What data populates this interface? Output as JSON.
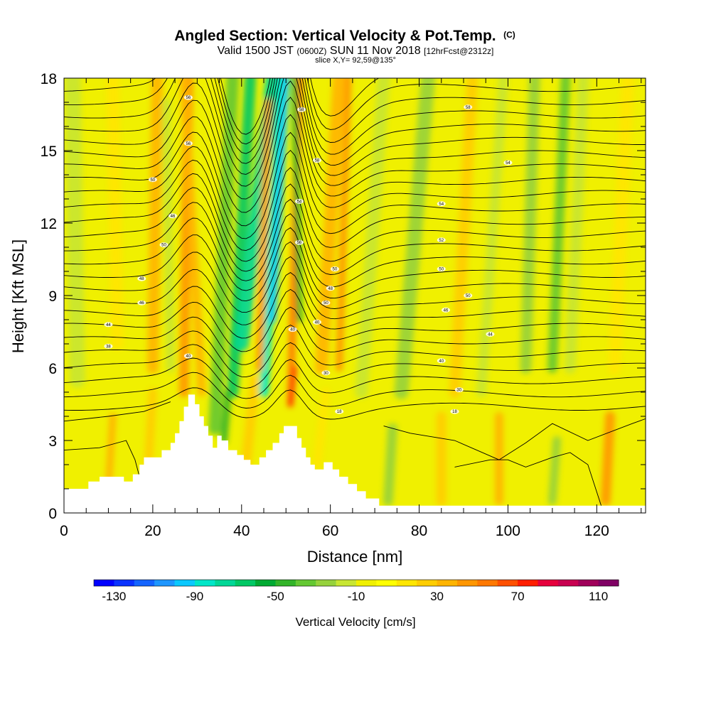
{
  "chart_data": {
    "type": "heatmap",
    "title": "Angled Section: Vertical Velocity & Pot.Temp.",
    "title_unit": "(C)",
    "subtitle": {
      "prefix": "Valid 1500 JST",
      "utc": "(0600Z)",
      "date": "SUN 11 Nov 2018",
      "forecast": "[12hrFcst@2312z]"
    },
    "slice": "slice X,Y= 92,59@135°",
    "xlabel": "Distance [nm]",
    "ylabel": "Height [Kft MSL]",
    "xlim": [
      0,
      131
    ],
    "ylim": [
      0,
      18
    ],
    "x_ticks": [
      0,
      20,
      40,
      60,
      80,
      100,
      120
    ],
    "y_ticks": [
      0,
      3,
      6,
      9,
      12,
      15,
      18
    ],
    "colorbar": {
      "title": "Vertical Velocity [cm/s]",
      "tick_labels": [
        "-130",
        "-90",
        "-50",
        "-10",
        "30",
        "70",
        "110"
      ],
      "tick_values": [
        -130,
        -90,
        -50,
        -10,
        30,
        70,
        110
      ],
      "range": [
        -140,
        120
      ],
      "colors": [
        "#0000ff",
        "#0a32ff",
        "#1464ff",
        "#1e96ff",
        "#0ac8ff",
        "#00e6c8",
        "#00d796",
        "#00c864",
        "#00aa32",
        "#32b428",
        "#64c832",
        "#96d23c",
        "#c8e632",
        "#f0f000",
        "#ffff00",
        "#ffe600",
        "#ffcd00",
        "#ffb400",
        "#ff9600",
        "#ff7800",
        "#ff5000",
        "#ff1e00",
        "#e6003c",
        "#c80050",
        "#a0005a",
        "#800064"
      ]
    },
    "terrain_profile": [
      {
        "x": 0,
        "h": 1.0
      },
      {
        "x": 5.5,
        "h": 1.0
      },
      {
        "x": 5.5,
        "h": 1.3
      },
      {
        "x": 8,
        "h": 1.3
      },
      {
        "x": 8,
        "h": 1.5
      },
      {
        "x": 13.5,
        "h": 1.5
      },
      {
        "x": 13.5,
        "h": 1.3
      },
      {
        "x": 15.5,
        "h": 1.3
      },
      {
        "x": 15.5,
        "h": 1.6
      },
      {
        "x": 17,
        "h": 1.6
      },
      {
        "x": 17,
        "h": 2.0
      },
      {
        "x": 18,
        "h": 2.0
      },
      {
        "x": 18,
        "h": 2.3
      },
      {
        "x": 22,
        "h": 2.3
      },
      {
        "x": 22,
        "h": 2.6
      },
      {
        "x": 24,
        "h": 2.6
      },
      {
        "x": 24,
        "h": 2.9
      },
      {
        "x": 25,
        "h": 2.9
      },
      {
        "x": 25,
        "h": 3.3
      },
      {
        "x": 26,
        "h": 3.3
      },
      {
        "x": 26,
        "h": 3.8
      },
      {
        "x": 27,
        "h": 3.8
      },
      {
        "x": 27,
        "h": 4.4
      },
      {
        "x": 28,
        "h": 4.4
      },
      {
        "x": 28,
        "h": 4.9
      },
      {
        "x": 29.5,
        "h": 4.9
      },
      {
        "x": 29.5,
        "h": 4.5
      },
      {
        "x": 30.5,
        "h": 4.5
      },
      {
        "x": 30.5,
        "h": 4.0
      },
      {
        "x": 31.5,
        "h": 4.0
      },
      {
        "x": 31.5,
        "h": 3.6
      },
      {
        "x": 32.5,
        "h": 3.6
      },
      {
        "x": 32.5,
        "h": 3.2
      },
      {
        "x": 33.5,
        "h": 3.2
      },
      {
        "x": 33.5,
        "h": 2.7
      },
      {
        "x": 34.5,
        "h": 2.7
      },
      {
        "x": 34.5,
        "h": 3.2
      },
      {
        "x": 35.5,
        "h": 3.2
      },
      {
        "x": 35.5,
        "h": 3.0
      },
      {
        "x": 37,
        "h": 3.0
      },
      {
        "x": 37,
        "h": 2.6
      },
      {
        "x": 39,
        "h": 2.6
      },
      {
        "x": 39,
        "h": 2.4
      },
      {
        "x": 40.5,
        "h": 2.4
      },
      {
        "x": 40.5,
        "h": 2.2
      },
      {
        "x": 42,
        "h": 2.2
      },
      {
        "x": 42,
        "h": 2.0
      },
      {
        "x": 44,
        "h": 2.0
      },
      {
        "x": 44,
        "h": 2.3
      },
      {
        "x": 45.5,
        "h": 2.3
      },
      {
        "x": 45.5,
        "h": 2.6
      },
      {
        "x": 47,
        "h": 2.6
      },
      {
        "x": 47,
        "h": 2.9
      },
      {
        "x": 48.5,
        "h": 2.9
      },
      {
        "x": 48.5,
        "h": 3.3
      },
      {
        "x": 49.5,
        "h": 3.3
      },
      {
        "x": 49.5,
        "h": 3.6
      },
      {
        "x": 52.5,
        "h": 3.6
      },
      {
        "x": 52.5,
        "h": 3.1
      },
      {
        "x": 53.5,
        "h": 3.1
      },
      {
        "x": 53.5,
        "h": 2.7
      },
      {
        "x": 54.5,
        "h": 2.7
      },
      {
        "x": 54.5,
        "h": 2.3
      },
      {
        "x": 55.5,
        "h": 2.3
      },
      {
        "x": 55.5,
        "h": 2.0
      },
      {
        "x": 56.5,
        "h": 2.0
      },
      {
        "x": 56.5,
        "h": 1.8
      },
      {
        "x": 58.5,
        "h": 1.8
      },
      {
        "x": 58.5,
        "h": 2.1
      },
      {
        "x": 60.5,
        "h": 2.1
      },
      {
        "x": 60.5,
        "h": 1.8
      },
      {
        "x": 62,
        "h": 1.8
      },
      {
        "x": 62,
        "h": 1.5
      },
      {
        "x": 64,
        "h": 1.5
      },
      {
        "x": 64,
        "h": 1.2
      },
      {
        "x": 66,
        "h": 1.2
      },
      {
        "x": 66,
        "h": 0.9
      },
      {
        "x": 68,
        "h": 0.9
      },
      {
        "x": 68,
        "h": 0.6
      },
      {
        "x": 71,
        "h": 0.6
      },
      {
        "x": 71,
        "h": 0.3
      },
      {
        "x": 131,
        "h": 0.3
      }
    ],
    "theta_labels": [
      {
        "x": 28,
        "y": 17.2,
        "text": "56"
      },
      {
        "x": 28,
        "y": 15.3,
        "text": "56"
      },
      {
        "x": 20,
        "y": 13.8,
        "text": "50"
      },
      {
        "x": 24.5,
        "y": 12.3,
        "text": "46"
      },
      {
        "x": 22.5,
        "y": 11.1,
        "text": "50"
      },
      {
        "x": 17.5,
        "y": 9.7,
        "text": "48"
      },
      {
        "x": 17.5,
        "y": 8.7,
        "text": "46"
      },
      {
        "x": 10,
        "y": 7.8,
        "text": "44"
      },
      {
        "x": 10,
        "y": 6.9,
        "text": "38"
      },
      {
        "x": 28,
        "y": 6.5,
        "text": "40"
      },
      {
        "x": 53.5,
        "y": 16.7,
        "text": "58"
      },
      {
        "x": 57,
        "y": 14.6,
        "text": "58"
      },
      {
        "x": 53,
        "y": 12.9,
        "text": "54"
      },
      {
        "x": 53,
        "y": 11.2,
        "text": "56"
      },
      {
        "x": 61,
        "y": 10.1,
        "text": "50"
      },
      {
        "x": 60,
        "y": 9.3,
        "text": "48"
      },
      {
        "x": 59,
        "y": 8.7,
        "text": "50"
      },
      {
        "x": 57,
        "y": 7.9,
        "text": "40"
      },
      {
        "x": 51.5,
        "y": 7.6,
        "text": "40"
      },
      {
        "x": 59,
        "y": 5.8,
        "text": "30"
      },
      {
        "x": 62,
        "y": 4.2,
        "text": "18"
      },
      {
        "x": 91,
        "y": 16.8,
        "text": "58"
      },
      {
        "x": 100,
        "y": 14.5,
        "text": "54"
      },
      {
        "x": 85,
        "y": 12.8,
        "text": "54"
      },
      {
        "x": 85,
        "y": 11.3,
        "text": "52"
      },
      {
        "x": 85,
        "y": 10.1,
        "text": "50"
      },
      {
        "x": 91,
        "y": 9.0,
        "text": "50"
      },
      {
        "x": 86,
        "y": 8.4,
        "text": "46"
      },
      {
        "x": 96,
        "y": 7.4,
        "text": "44"
      },
      {
        "x": 85,
        "y": 6.3,
        "text": "40"
      },
      {
        "x": 89,
        "y": 5.1,
        "text": "30"
      },
      {
        "x": 88,
        "y": 4.2,
        "text": "18"
      }
    ]
  }
}
